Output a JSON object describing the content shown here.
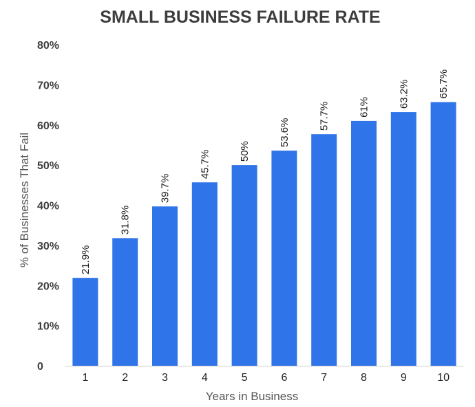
{
  "chart_data": {
    "type": "bar",
    "title": "SMALL BUSINESS FAILURE RATE",
    "xlabel": "Years in Business",
    "ylabel": "% of Businesses That Fail",
    "categories": [
      "1",
      "2",
      "3",
      "4",
      "5",
      "6",
      "7",
      "8",
      "9",
      "10"
    ],
    "values": [
      21.9,
      31.8,
      39.7,
      45.7,
      50,
      53.6,
      57.7,
      61,
      63.2,
      65.7
    ],
    "data_labels": [
      "21.9%",
      "31.8%",
      "39.7%",
      "45.7%",
      "50%",
      "53.6%",
      "57.7%",
      "61%",
      "63.2%",
      "65.7%"
    ],
    "ylim": [
      0,
      80
    ],
    "yticks": [
      0,
      10,
      20,
      30,
      40,
      50,
      60,
      70,
      80
    ],
    "ytick_labels": [
      "0",
      "10%",
      "20%",
      "30%",
      "40%",
      "50%",
      "60%",
      "70%",
      "80%"
    ],
    "grid": false,
    "legend": "none",
    "bar_color": "#2f74e8",
    "axis_color": "#cccccc"
  }
}
